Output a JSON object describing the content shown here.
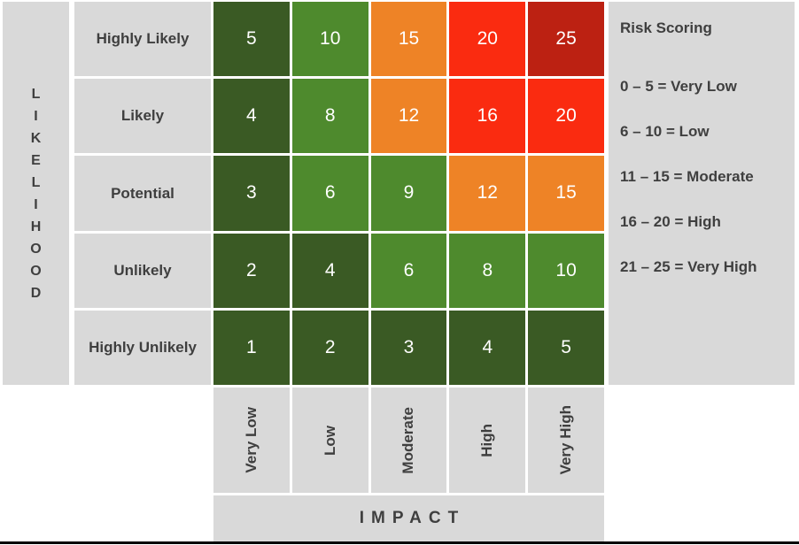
{
  "chart_data": {
    "type": "heatmap",
    "title": "Risk Scoring",
    "xlabel": "IMPACT",
    "ylabel": "LIKELIHOOD",
    "x_categories": [
      "Very Low",
      "Low",
      "Moderate",
      "High",
      "Very High"
    ],
    "y_categories": [
      "Highly Likely",
      "Likely",
      "Potential",
      "Unlikely",
      "Highly Unlikely"
    ],
    "values": [
      [
        5,
        10,
        15,
        20,
        25
      ],
      [
        4,
        8,
        12,
        16,
        20
      ],
      [
        3,
        6,
        9,
        12,
        15
      ],
      [
        2,
        4,
        6,
        8,
        10
      ],
      [
        1,
        2,
        3,
        4,
        5
      ]
    ],
    "score_bands": [
      {
        "min": 0,
        "max": 5,
        "label": "Very Low",
        "color": "#3A5A24"
      },
      {
        "min": 6,
        "max": 10,
        "label": "Low",
        "color": "#4E8A2D"
      },
      {
        "min": 11,
        "max": 15,
        "label": "Moderate",
        "color": "#EE8326"
      },
      {
        "min": 16,
        "max": 20,
        "label": "High",
        "color": "#FA2B10"
      },
      {
        "min": 21,
        "max": 25,
        "label": "Very High",
        "color": "#BC2112"
      }
    ],
    "legend_position": "right",
    "grid": false
  },
  "axes": {
    "likelihood_letters": [
      "L",
      "I",
      "K",
      "E",
      "L",
      "I",
      "H",
      "O",
      "O",
      "D"
    ],
    "impact_label": "IMPACT"
  },
  "legend": {
    "title": "Risk Scoring",
    "entries": [
      "0 – 5 = Very Low",
      "6 – 10 = Low",
      "11 – 15 = Moderate",
      "16 – 20 = High",
      "21 – 25 = Very High"
    ]
  },
  "colors": {
    "panel_bg": "#D9D9D9",
    "label_text": "#3F3F3F",
    "cell_text": "#FFFFFF",
    "very_low": "#3A5A24",
    "low": "#4E8A2D",
    "moderate": "#EE8326",
    "high": "#FA2B10",
    "very_high": "#BC2112",
    "bottom_border": "#000000"
  }
}
